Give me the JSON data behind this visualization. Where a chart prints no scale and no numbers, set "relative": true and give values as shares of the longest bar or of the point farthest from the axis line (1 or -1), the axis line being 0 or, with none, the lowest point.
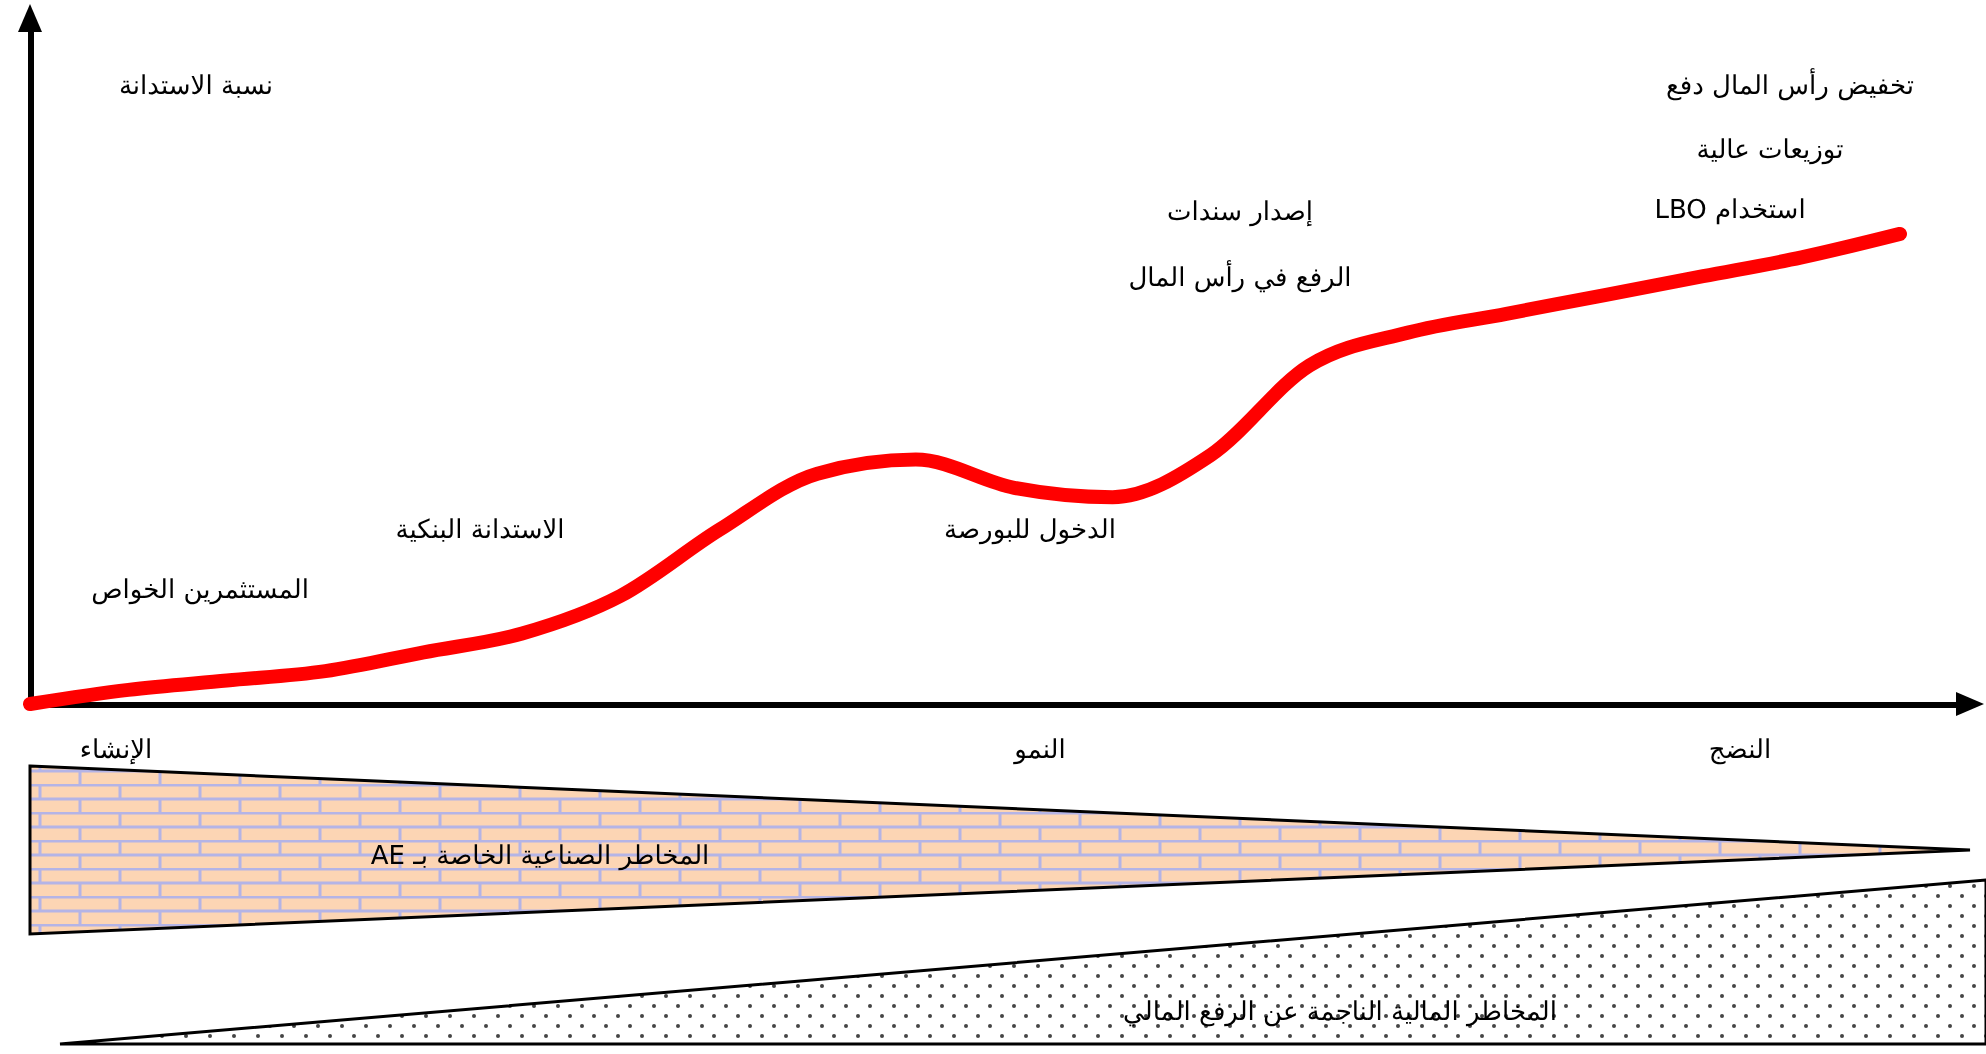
{
  "chart_data": {
    "type": "line",
    "relative": true,
    "categories": [
      null,
      null,
      null,
      null,
      null,
      null,
      null,
      null,
      null,
      null,
      null,
      null,
      null,
      null,
      null,
      null,
      null,
      null,
      null,
      null
    ],
    "series": [
      {
        "color": "#ff0000",
        "values": [
          0,
          0.03,
          0.05,
          0.07,
          0.11,
          0.15,
          0.23,
          0.37,
          0.49,
          0.52,
          0.46,
          0.44,
          0.53,
          0.72,
          0.79,
          0.83,
          0.87,
          0.91,
          0.95,
          1
        ]
      }
    ],
    "annotations": [
      "نسبة الاستدانة",
      "المستثمرين الخواص",
      "الاستدانة البنكية",
      "الدخول للبورصة",
      "إصدار سندات",
      "الرفع في رأس المال",
      "استخدام LBO",
      "تخفيض رأس المال دفع",
      "توزيعات عالية",
      "الإنشاء",
      "النمو",
      "النضج",
      "المخاطر الصناعية الخاصة بـ AE",
      "المخاطر المالية الناجمة عن الرفع المالي"
    ]
  }
}
